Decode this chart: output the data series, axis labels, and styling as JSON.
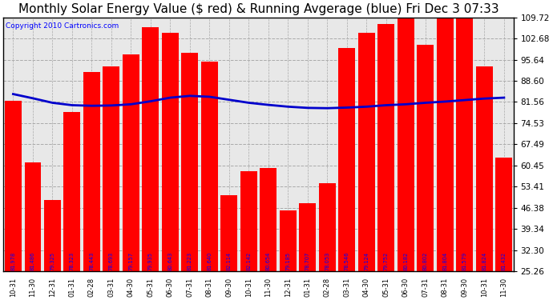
{
  "title": "Monthly Solar Energy Value ($ red) & Running Avgerage (blue) Fri Dec 3 07:33",
  "copyright": "Copyright 2010 Cartronics.com",
  "categories": [
    "10-31",
    "11-30",
    "12-31",
    "01-31",
    "02-28",
    "03-31",
    "04-30",
    "05-31",
    "06-30",
    "07-31",
    "08-31",
    "09-30",
    "10-31",
    "11-30",
    "12-31",
    "01-31",
    "02-28",
    "03-31",
    "04-30",
    "05-31",
    "06-30",
    "07-31",
    "08-31",
    "09-30",
    "10-31",
    "11-30"
  ],
  "bar_labels": [
    "81.978",
    "81.486",
    "79.325",
    "78.323",
    "78.443",
    "78.693",
    "79.157",
    "79.935",
    "80.643",
    "81.223",
    "81.640",
    "82.114",
    "82.142",
    "80.654",
    "79.185",
    "78.707",
    "78.053",
    "78.546",
    "79.124",
    "79.752",
    "80.182",
    "80.802",
    "81.804",
    "81.579",
    "81.824",
    "81.432"
  ],
  "bar_heights": [
    81.978,
    61.5,
    49.0,
    78.3,
    91.5,
    93.5,
    97.5,
    106.5,
    104.5,
    98.0,
    95.0,
    50.5,
    58.5,
    59.5,
    45.5,
    48.0,
    54.5,
    99.5,
    104.5,
    107.5,
    109.5,
    100.5,
    109.5,
    109.5,
    93.5,
    63.0
  ],
  "avg_values": [
    84.2,
    82.8,
    81.3,
    80.5,
    80.3,
    80.4,
    80.8,
    81.8,
    83.0,
    83.6,
    83.3,
    82.3,
    81.3,
    80.6,
    80.0,
    79.6,
    79.5,
    79.7,
    80.0,
    80.5,
    80.8,
    81.3,
    81.7,
    82.2,
    82.7,
    83.0
  ],
  "ylim": [
    25.26,
    109.72
  ],
  "yticks": [
    25.26,
    32.3,
    39.34,
    46.38,
    53.41,
    60.45,
    67.49,
    74.53,
    81.56,
    88.6,
    95.64,
    102.68,
    109.72
  ],
  "bar_color": "#FF0000",
  "avg_color": "#0000CC",
  "plot_bg": "#E8E8E8",
  "title_color": "#000000",
  "label_color": "#0000FF",
  "grid_color": "#AAAAAA",
  "title_fontsize": 11,
  "copyright_fontsize": 6.5,
  "bar_label_fontsize": 4.8,
  "ytick_fontsize": 7.5
}
